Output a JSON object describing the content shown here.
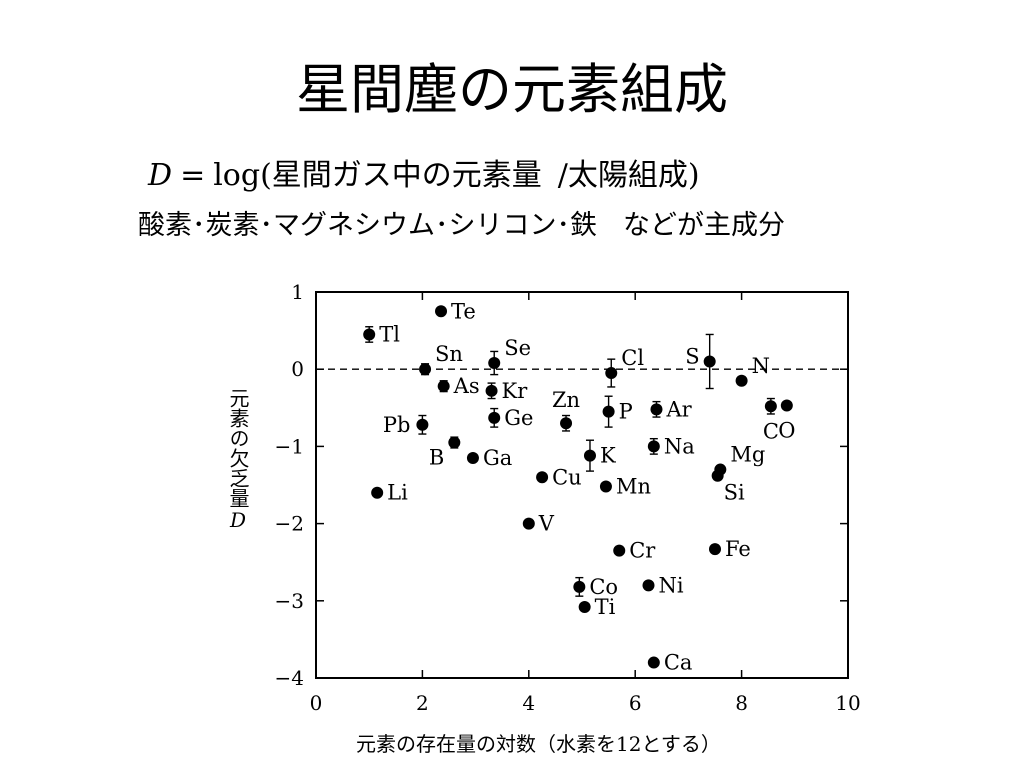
{
  "slide": {
    "title": "星間塵の元素組成",
    "formula": {
      "variable": "D",
      "equals": "=",
      "expression": "log(星間ガス中の元素量",
      "divider": "/",
      "denominator": "太陽組成)"
    },
    "main_components": {
      "elements": "酸素･炭素･マグネシウム･シリコン･鉄",
      "suffix": "などが主成分"
    }
  },
  "chart_data": {
    "type": "scatter",
    "xlabel": "元素の存在量の対数（水素を12とする）",
    "ylabel": "元素の欠乏量",
    "ylabel_variable": "D",
    "xlim": [
      0,
      10
    ],
    "ylim": [
      -4,
      1
    ],
    "xticks": [
      0,
      2,
      4,
      6,
      8,
      10
    ],
    "yticks": [
      1,
      0,
      -1,
      -2,
      -3,
      -4
    ],
    "xtick_labels": [
      "0",
      "2",
      "4",
      "6",
      "8",
      "10"
    ],
    "ytick_labels": [
      "1",
      "0",
      "−1",
      "−2",
      "−3",
      "−4"
    ],
    "reference_line": {
      "y": 0,
      "style": "dashed"
    },
    "grid": false,
    "points": [
      {
        "label": "Tl",
        "x": 1.0,
        "y": 0.45,
        "err": 0.1,
        "side": "right"
      },
      {
        "label": "Li",
        "x": 1.15,
        "y": -1.6,
        "err": 0,
        "side": "right"
      },
      {
        "label": "Te",
        "x": 2.35,
        "y": 0.75,
        "err": 0,
        "side": "right"
      },
      {
        "label": "Sn",
        "x": 2.05,
        "y": 0.0,
        "err": 0.07,
        "side": "upper-right"
      },
      {
        "label": "As",
        "x": 2.4,
        "y": -0.22,
        "err": 0.07,
        "side": "right"
      },
      {
        "label": "Pb",
        "x": 2.0,
        "y": -0.72,
        "err": 0.12,
        "side": "left"
      },
      {
        "label": "B",
        "x": 2.6,
        "y": -0.95,
        "err": 0.07,
        "side": "lower-left"
      },
      {
        "label": "Ga",
        "x": 2.95,
        "y": -1.15,
        "err": 0,
        "side": "right"
      },
      {
        "label": "Se",
        "x": 3.35,
        "y": 0.08,
        "err": 0.15,
        "side": "upper-right"
      },
      {
        "label": "Kr",
        "x": 3.3,
        "y": -0.28,
        "err": 0.1,
        "side": "right"
      },
      {
        "label": "Ge",
        "x": 3.35,
        "y": -0.63,
        "err": 0.12,
        "side": "right"
      },
      {
        "label": "V",
        "x": 4.0,
        "y": -2.0,
        "err": 0,
        "side": "right"
      },
      {
        "label": "Cu",
        "x": 4.25,
        "y": -1.4,
        "err": 0,
        "side": "right"
      },
      {
        "label": "Zn",
        "x": 4.7,
        "y": -0.7,
        "err": 0.1,
        "side": "above"
      },
      {
        "label": "Co",
        "x": 4.95,
        "y": -2.82,
        "err": 0.12,
        "side": "right"
      },
      {
        "label": "Ti",
        "x": 5.05,
        "y": -3.08,
        "err": 0,
        "side": "right"
      },
      {
        "label": "K",
        "x": 5.15,
        "y": -1.12,
        "err": 0.2,
        "side": "right"
      },
      {
        "label": "Mn",
        "x": 5.45,
        "y": -1.52,
        "err": 0,
        "side": "right"
      },
      {
        "label": "Cl",
        "x": 5.55,
        "y": -0.05,
        "err": 0.18,
        "side": "upper-right"
      },
      {
        "label": "P",
        "x": 5.5,
        "y": -0.55,
        "err": 0.2,
        "side": "right"
      },
      {
        "label": "Cr",
        "x": 5.7,
        "y": -2.35,
        "err": 0,
        "side": "right"
      },
      {
        "label": "Ni",
        "x": 6.25,
        "y": -2.8,
        "err": 0,
        "side": "right"
      },
      {
        "label": "Ar",
        "x": 6.4,
        "y": -0.52,
        "err": 0.1,
        "side": "right"
      },
      {
        "label": "Na",
        "x": 6.35,
        "y": -1.0,
        "err": 0.1,
        "side": "right"
      },
      {
        "label": "Ca",
        "x": 6.35,
        "y": -3.8,
        "err": 0,
        "side": "right"
      },
      {
        "label": "S",
        "x": 7.4,
        "y": 0.1,
        "err": 0.35,
        "side": "upper-left"
      },
      {
        "label": "N",
        "x": 8.0,
        "y": -0.15,
        "err": 0.05,
        "side": "upper-right"
      },
      {
        "label": "Fe",
        "x": 7.5,
        "y": -2.33,
        "err": 0,
        "side": "right"
      },
      {
        "label": "Mg",
        "x": 7.6,
        "y": -1.3,
        "err": 0.05,
        "side": "upper-right"
      },
      {
        "label": "Si",
        "x": 7.55,
        "y": -1.38,
        "err": 0.05,
        "side": "lower-right"
      },
      {
        "label": "C",
        "x": 8.55,
        "y": -0.48,
        "err": 0.1,
        "side": "below"
      },
      {
        "label": "O",
        "x": 8.85,
        "y": -0.47,
        "err": 0,
        "side": "below"
      }
    ]
  }
}
